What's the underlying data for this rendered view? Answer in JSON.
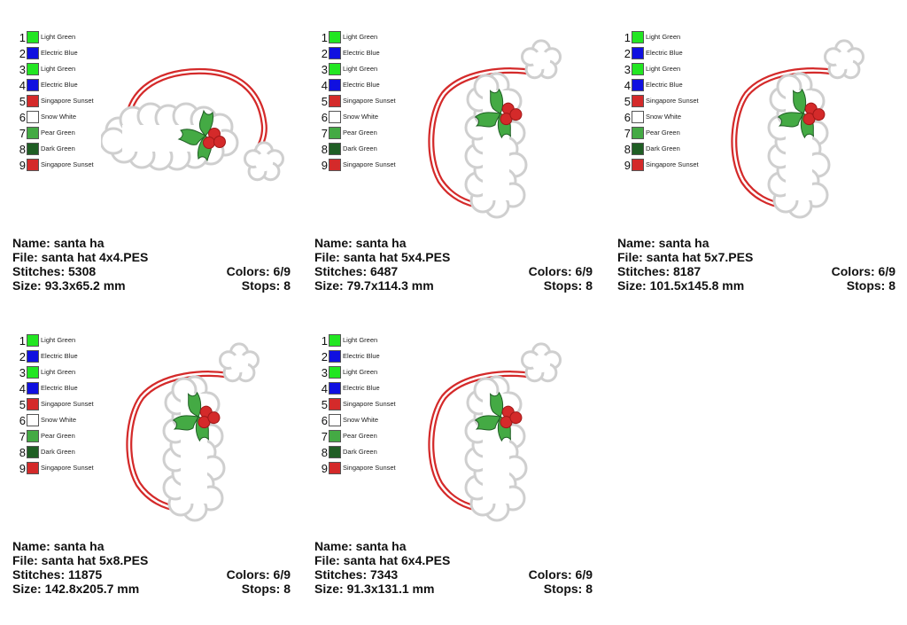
{
  "palette": [
    {
      "num": "1",
      "name": "Light Green",
      "color": "#22e622"
    },
    {
      "num": "2",
      "name": "Electric Blue",
      "color": "#1010e0"
    },
    {
      "num": "3",
      "name": "Light Green",
      "color": "#22e622"
    },
    {
      "num": "4",
      "name": "Electric Blue",
      "color": "#1010e0"
    },
    {
      "num": "5",
      "name": "Singapore Sunset",
      "color": "#d42a2a"
    },
    {
      "num": "6",
      "name": "Snow White",
      "color": "#ffffff"
    },
    {
      "num": "7",
      "name": "Pear Green",
      "color": "#44aa44"
    },
    {
      "num": "8",
      "name": "Dark Green",
      "color": "#1f5e24"
    },
    {
      "num": "9",
      "name": "Singapore Sunset",
      "color": "#d42a2a"
    }
  ],
  "designs": [
    {
      "name": "Name: santa ha",
      "file": "File: santa hat 4x4.PES",
      "stitches": "Stitches: 5308",
      "colors": "Colors: 6/9",
      "size": "Size: 93.3x65.2 mm",
      "stops": "Stops: 8"
    },
    {
      "name": "Name: santa ha",
      "file": "File: santa hat 5x4.PES",
      "stitches": "Stitches: 6487",
      "colors": "Colors: 6/9",
      "size": "Size: 79.7x114.3 mm",
      "stops": "Stops: 8"
    },
    {
      "name": "Name: santa ha",
      "file": "File: santa hat 5x7.PES",
      "stitches": "Stitches: 8187",
      "colors": "Colors: 6/9",
      "size": "Size: 101.5x145.8 mm",
      "stops": "Stops: 8"
    },
    {
      "name": "Name: santa ha",
      "file": "File: santa hat 5x8.PES",
      "stitches": "Stitches: 11875",
      "colors": "Colors: 6/9",
      "size": "Size: 142.8x205.7 mm",
      "stops": "Stops: 8"
    },
    {
      "name": "Name: santa ha",
      "file": "File: santa hat 6x4.PES",
      "stitches": "Stitches: 7343",
      "colors": "Colors: 6/9",
      "size": "Size: 91.3x131.1 mm",
      "stops": "Stops: 8"
    }
  ],
  "art_colors": {
    "hat_outline": "#d42a2a",
    "fur_fill": "#ffffff",
    "fur_stroke": "#cfcfcf",
    "leaf_fill": "#44aa44",
    "leaf_vein": "#1f5e24",
    "berry_fill": "#d42a2a"
  }
}
